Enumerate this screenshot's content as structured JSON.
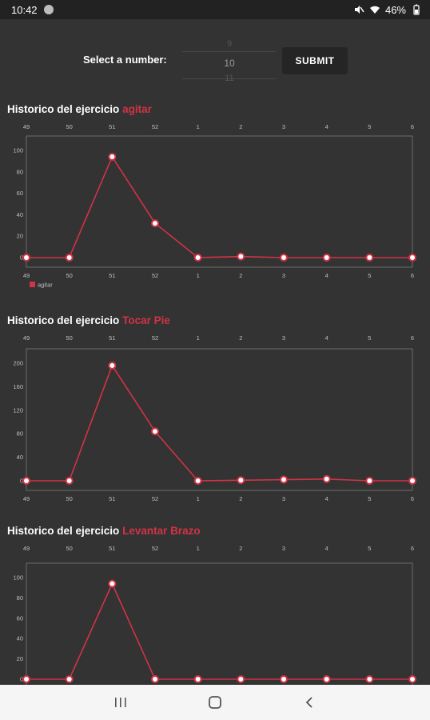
{
  "status_bar": {
    "time": "10:42",
    "battery": "46%"
  },
  "picker": {
    "label": "Select a number:",
    "prev_value": "9",
    "current_value": "10",
    "next_value": "11",
    "submit_label": "SUBMIT"
  },
  "colors": {
    "accent": "#d23345",
    "background": "#333333",
    "axis": "#bfbfbf"
  },
  "sections": [
    {
      "title_prefix": "Historico del ejercicio",
      "exercise_name": "agitar"
    },
    {
      "title_prefix": "Historico del ejercicio",
      "exercise_name": "Tocar Pie"
    },
    {
      "title_prefix": "Historico del ejercicio",
      "exercise_name": "Levantar Brazo"
    }
  ],
  "chart_data": [
    {
      "type": "line",
      "categories": [
        "49",
        "50",
        "51",
        "52",
        "1",
        "2",
        "3",
        "4",
        "5",
        "6"
      ],
      "series": [
        {
          "name": "agitar",
          "values": [
            0,
            0,
            94,
            32,
            0,
            1,
            0,
            0,
            0,
            0
          ]
        }
      ],
      "ylim": [
        0,
        100
      ],
      "yticks": [
        0,
        20,
        40,
        60,
        80,
        100
      ],
      "legend": "bottom-left",
      "grid": false
    },
    {
      "type": "line",
      "categories": [
        "49",
        "50",
        "51",
        "52",
        "1",
        "2",
        "3",
        "4",
        "5",
        "6"
      ],
      "series": [
        {
          "name": "Tocar Pie",
          "values": [
            0,
            0,
            196,
            84,
            0,
            1,
            2,
            3,
            0,
            0
          ]
        }
      ],
      "ylim": [
        0,
        200
      ],
      "yticks": [
        0,
        40,
        80,
        120,
        160,
        200
      ],
      "legend": "bottom-left",
      "grid": false
    },
    {
      "type": "line",
      "categories": [
        "49",
        "50",
        "51",
        "52",
        "1",
        "2",
        "3",
        "4",
        "5",
        "6"
      ],
      "series": [
        {
          "values": [
            0,
            0,
            94,
            0,
            0,
            0,
            0,
            0,
            0,
            0
          ]
        }
      ],
      "ylim": [
        0,
        100
      ],
      "yticks": [
        0,
        20,
        40,
        60,
        80,
        100
      ],
      "legend": "none",
      "grid": false
    }
  ],
  "nav": {
    "recent_icon": "recent-apps-icon",
    "home_icon": "home-icon",
    "back_icon": "back-icon"
  }
}
